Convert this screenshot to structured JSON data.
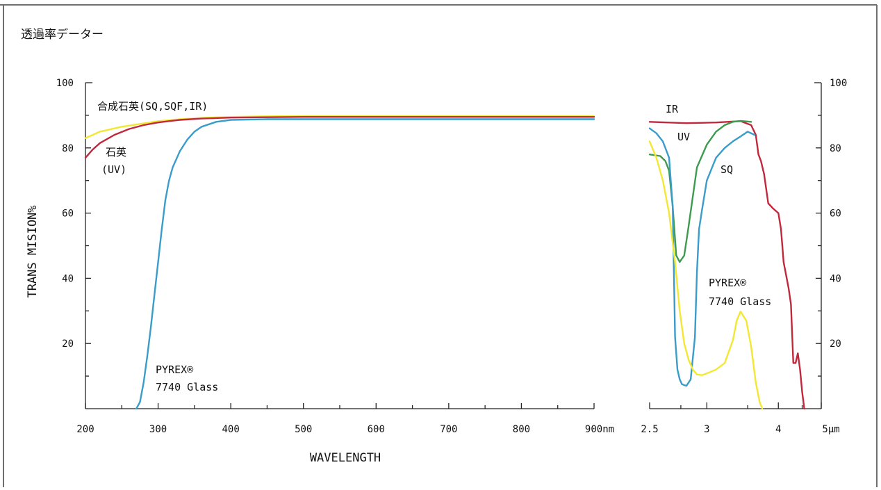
{
  "page": {
    "title": "透過率データー",
    "colors": {
      "border": "#6e6e6e",
      "axis": "#222222",
      "text": "#111111"
    }
  },
  "chart_data": [
    {
      "type": "line",
      "xlabel": "WAVELENGTH",
      "ylabel": "TRANS MISION%",
      "x_unit_label": "nm",
      "xlim": [
        200,
        900
      ],
      "ylim": [
        0,
        100
      ],
      "x_ticks": [
        200,
        300,
        400,
        500,
        600,
        700,
        800,
        900
      ],
      "x_tick_labels": [
        "200",
        "300",
        "400",
        "500",
        "600",
        "700",
        "800",
        "900nm"
      ],
      "y_ticks": [
        20,
        40,
        60,
        80,
        100
      ],
      "y_tick_labels": [
        "20",
        "40",
        "60",
        "80",
        "100"
      ],
      "grid": false,
      "series": [
        {
          "key": "synthetic_quartz",
          "color": "#f2e832",
          "x": [
            200,
            220,
            250,
            280,
            300,
            330,
            360,
            400,
            450,
            500,
            600,
            700,
            800,
            900
          ],
          "values": [
            83,
            85,
            86.5,
            87.5,
            88.2,
            88.8,
            89.2,
            89.5,
            89.7,
            89.8,
            89.8,
            89.8,
            89.8,
            89.8
          ]
        },
        {
          "key": "quartz_uv",
          "color": "#c0283c",
          "x": [
            200,
            210,
            220,
            240,
            260,
            280,
            300,
            330,
            360,
            400,
            450,
            500,
            600,
            700,
            800,
            900
          ],
          "values": [
            77,
            79.5,
            81.5,
            84,
            85.8,
            87,
            87.8,
            88.6,
            89,
            89.3,
            89.4,
            89.5,
            89.5,
            89.5,
            89.5,
            89.5
          ]
        },
        {
          "key": "pyrex_7740",
          "color": "#3a9cc8",
          "x": [
            270,
            275,
            280,
            285,
            290,
            295,
            300,
            305,
            310,
            315,
            320,
            330,
            340,
            350,
            360,
            380,
            400,
            450,
            500,
            600,
            700,
            800,
            900
          ],
          "values": [
            0,
            2,
            8,
            16,
            25,
            35,
            45,
            55,
            64,
            70,
            74,
            79,
            82.5,
            85,
            86.5,
            88,
            88.6,
            88.8,
            88.8,
            88.8,
            88.8,
            88.8,
            88.8
          ]
        }
      ],
      "annotations": [
        {
          "id": "synthetic_quartz_label",
          "text": "合成石英(SQ,SQF,IR)"
        },
        {
          "id": "quartz_uv_label_1",
          "text": "石英"
        },
        {
          "id": "quartz_uv_label_2",
          "text": "(UV)"
        },
        {
          "id": "pyrex_label_1",
          "text": "PYREX®"
        },
        {
          "id": "pyrex_label_2",
          "text": "7740 Glass"
        }
      ]
    },
    {
      "type": "line",
      "x_unit_label": "μm",
      "xlim": [
        2.5,
        5
      ],
      "ylim": [
        0,
        100
      ],
      "x_ticks": [
        2.5,
        3,
        4,
        5
      ],
      "x_tick_labels": [
        "2.5",
        "3",
        "4",
        "5μm"
      ],
      "y_ticks": [
        20,
        40,
        60,
        80,
        100
      ],
      "y_tick_labels": [
        "20",
        "40",
        "60",
        "80",
        "100"
      ],
      "grid": false,
      "series": [
        {
          "key": "IR",
          "color": "#c0283c",
          "x": [
            2.5,
            2.8,
            3.1,
            3.4,
            3.55,
            3.62,
            3.66,
            3.7,
            3.75,
            3.82,
            3.9,
            4.0,
            4.05,
            4.1,
            4.2,
            4.25,
            4.3,
            4.35,
            4.4,
            4.45,
            4.5,
            4.55
          ],
          "values": [
            88,
            87.6,
            87.8,
            88.2,
            87,
            84,
            78,
            76,
            72,
            63,
            61.5,
            60,
            55,
            45,
            37,
            32,
            14,
            14,
            17,
            12,
            5,
            0
          ]
        },
        {
          "key": "UV",
          "color": "#3e9a4e",
          "x": [
            2.5,
            2.58,
            2.62,
            2.65,
            2.68,
            2.71,
            2.74,
            2.78,
            2.82,
            2.9,
            3.0,
            3.1,
            3.2,
            3.3,
            3.4,
            3.55
          ],
          "values": [
            78,
            77.5,
            76,
            73,
            62,
            47,
            45,
            47,
            56,
            74,
            81,
            85,
            87,
            88,
            88.3,
            88
          ]
        },
        {
          "key": "SQ",
          "color": "#3a9cc8",
          "x": [
            2.5,
            2.55,
            2.6,
            2.65,
            2.68,
            2.7,
            2.72,
            2.74,
            2.76,
            2.8,
            2.84,
            2.88,
            2.9,
            2.92,
            2.95,
            3.0,
            3.1,
            3.2,
            3.3,
            3.4,
            3.5,
            3.6
          ],
          "values": [
            86,
            84.5,
            82,
            77,
            62,
            22,
            12,
            9,
            7.5,
            7,
            9,
            22,
            42,
            55,
            61,
            70,
            77,
            80,
            82,
            83.5,
            85,
            84
          ]
        },
        {
          "key": "PYREX",
          "color": "#f2e832",
          "x": [
            2.5,
            2.55,
            2.6,
            2.65,
            2.7,
            2.74,
            2.78,
            2.82,
            2.86,
            2.9,
            2.95,
            3.0,
            3.1,
            3.2,
            3.3,
            3.35,
            3.4,
            3.48,
            3.55,
            3.62,
            3.68,
            3.72
          ],
          "values": [
            82,
            77,
            70,
            60,
            45,
            30,
            20,
            15,
            12,
            10.5,
            10.3,
            10.8,
            12,
            14,
            21,
            27,
            29.8,
            27,
            19,
            8,
            2,
            0
          ]
        }
      ],
      "annotations": [
        {
          "id": "ir_label",
          "text": "IR"
        },
        {
          "id": "uv_label",
          "text": "UV"
        },
        {
          "id": "sq_label",
          "text": "SQ"
        },
        {
          "id": "pyrex_label_1",
          "text": "PYREX®"
        },
        {
          "id": "pyrex_label_2",
          "text": "7740 Glass"
        }
      ]
    }
  ]
}
